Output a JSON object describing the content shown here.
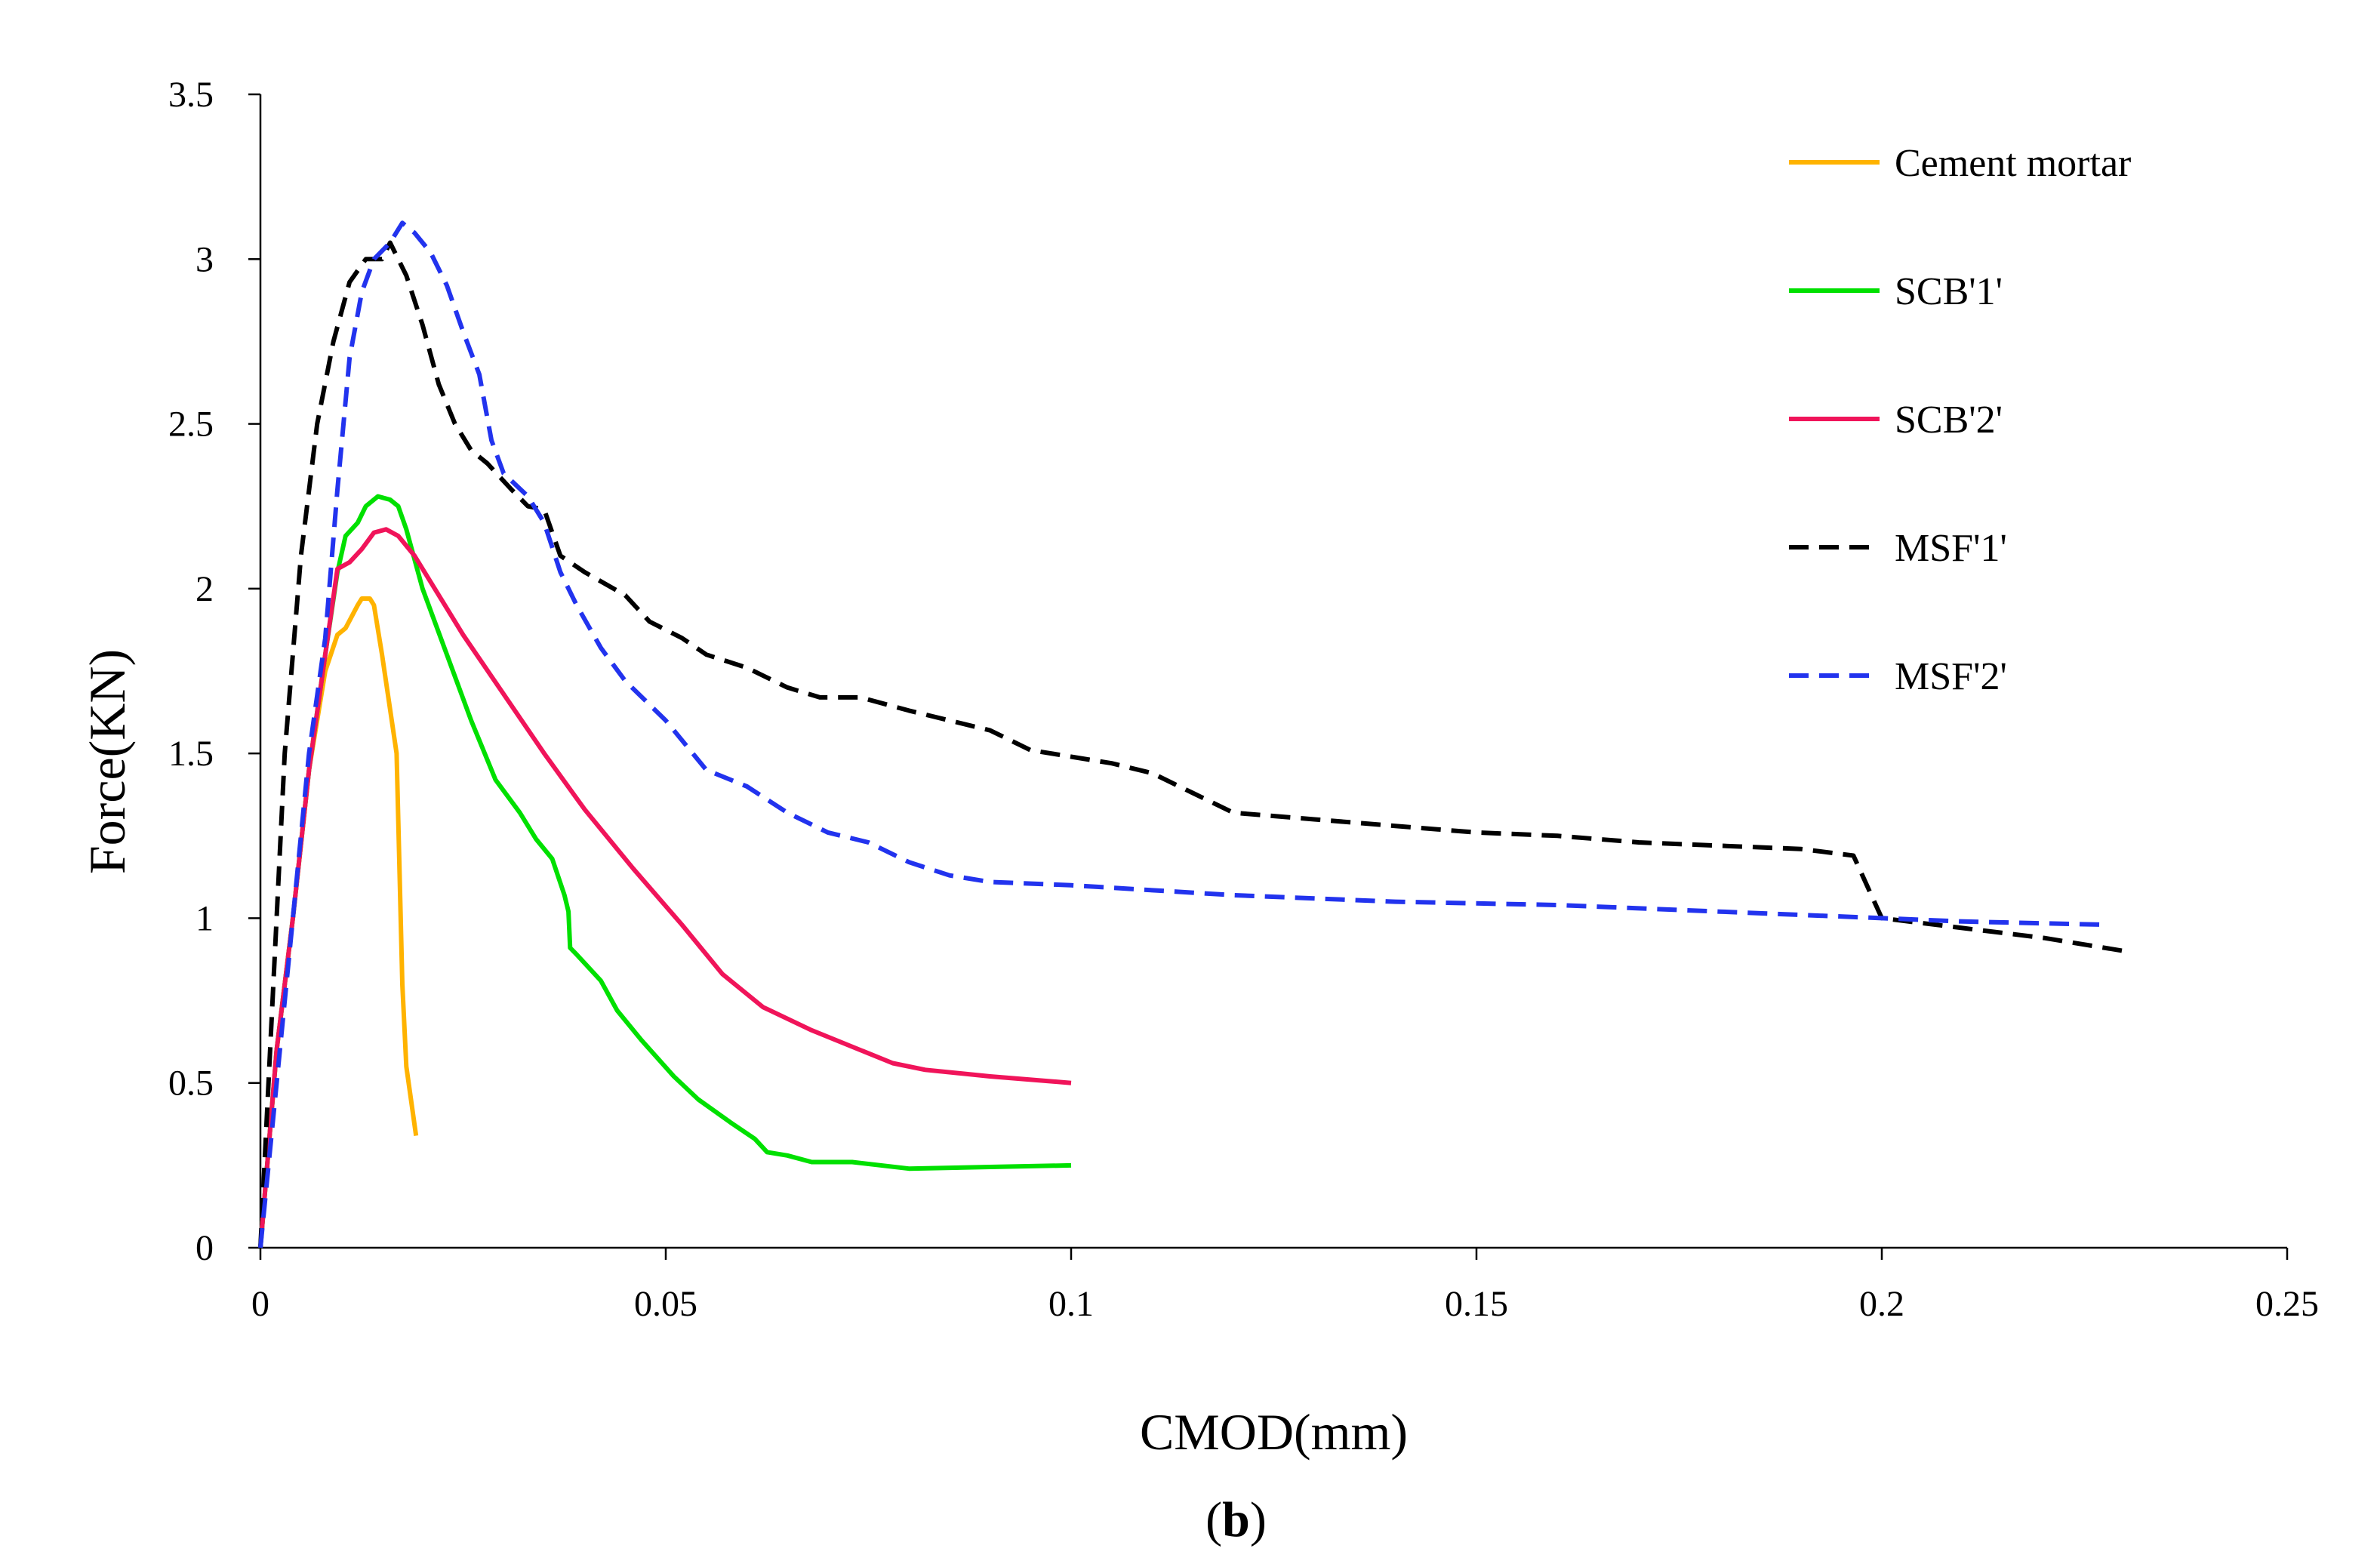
{
  "chart_data": {
    "type": "line",
    "title": "",
    "xlabel": "CMOD(mm)",
    "ylabel": "Force(KN)",
    "caption": {
      "open": "(",
      "bold": "b",
      "close": ")"
    },
    "xlim": [
      0,
      0.25
    ],
    "ylim": [
      0,
      3.5
    ],
    "x_ticks": [
      {
        "value": 0,
        "label": "0"
      },
      {
        "value": 0.05,
        "label": "0.05"
      },
      {
        "value": 0.1,
        "label": "0.1"
      },
      {
        "value": 0.15,
        "label": "0.15"
      },
      {
        "value": 0.2,
        "label": "0.2"
      },
      {
        "value": 0.25,
        "label": "0.25"
      }
    ],
    "y_ticks": [
      {
        "value": 0,
        "label": "0"
      },
      {
        "value": 0.5,
        "label": "0.5"
      },
      {
        "value": 1,
        "label": "1"
      },
      {
        "value": 1.5,
        "label": "1.5"
      },
      {
        "value": 2,
        "label": "2"
      },
      {
        "value": 2.5,
        "label": "2.5"
      },
      {
        "value": 3,
        "label": "3"
      },
      {
        "value": 3.5,
        "label": "3.5"
      }
    ],
    "grid": false,
    "legend_position": "top-right",
    "series": [
      {
        "name": "Cement mortar",
        "color": "#FFB300",
        "dash": "solid",
        "points": [
          [
            0,
            0
          ],
          [
            0.002,
            0.6
          ],
          [
            0.004,
            1.0
          ],
          [
            0.006,
            1.45
          ],
          [
            0.008,
            1.75
          ],
          [
            0.0095,
            1.86
          ],
          [
            0.0105,
            1.88
          ],
          [
            0.012,
            1.95
          ],
          [
            0.0125,
            1.97
          ],
          [
            0.0135,
            1.97
          ],
          [
            0.014,
            1.95
          ],
          [
            0.015,
            1.8
          ],
          [
            0.0168,
            1.5
          ],
          [
            0.017,
            1.3
          ],
          [
            0.0175,
            0.8
          ],
          [
            0.018,
            0.55
          ],
          [
            0.0192,
            0.34
          ]
        ]
      },
      {
        "name": "SCB'1'",
        "color": "#00E000",
        "dash": "solid",
        "points": [
          [
            0,
            0
          ],
          [
            0.002,
            0.6
          ],
          [
            0.004,
            1.0
          ],
          [
            0.006,
            1.45
          ],
          [
            0.008,
            1.8
          ],
          [
            0.0095,
            2.05
          ],
          [
            0.0105,
            2.16
          ],
          [
            0.012,
            2.2
          ],
          [
            0.013,
            2.25
          ],
          [
            0.0145,
            2.28
          ],
          [
            0.016,
            2.27
          ],
          [
            0.017,
            2.25
          ],
          [
            0.018,
            2.18
          ],
          [
            0.02,
            2.0
          ],
          [
            0.023,
            1.8
          ],
          [
            0.026,
            1.6
          ],
          [
            0.029,
            1.42
          ],
          [
            0.032,
            1.32
          ],
          [
            0.034,
            1.24
          ],
          [
            0.036,
            1.18
          ],
          [
            0.0375,
            1.07
          ],
          [
            0.038,
            1.02
          ],
          [
            0.0382,
            0.91
          ],
          [
            0.039,
            0.89
          ],
          [
            0.042,
            0.81
          ],
          [
            0.044,
            0.72
          ],
          [
            0.047,
            0.63
          ],
          [
            0.051,
            0.52
          ],
          [
            0.054,
            0.45
          ],
          [
            0.058,
            0.38
          ],
          [
            0.061,
            0.33
          ],
          [
            0.0625,
            0.29
          ],
          [
            0.065,
            0.28
          ],
          [
            0.068,
            0.26
          ],
          [
            0.073,
            0.26
          ],
          [
            0.08,
            0.24
          ],
          [
            0.09,
            0.245
          ],
          [
            0.1,
            0.25
          ]
        ]
      },
      {
        "name": "SCB'2'",
        "color": "#F0145A",
        "dash": "solid",
        "points": [
          [
            0,
            0
          ],
          [
            0.002,
            0.6
          ],
          [
            0.004,
            1.0
          ],
          [
            0.006,
            1.45
          ],
          [
            0.008,
            1.8
          ],
          [
            0.0095,
            2.06
          ],
          [
            0.011,
            2.08
          ],
          [
            0.0125,
            2.12
          ],
          [
            0.014,
            2.17
          ],
          [
            0.0155,
            2.18
          ],
          [
            0.017,
            2.16
          ],
          [
            0.019,
            2.1
          ],
          [
            0.022,
            1.98
          ],
          [
            0.025,
            1.86
          ],
          [
            0.03,
            1.68
          ],
          [
            0.035,
            1.5
          ],
          [
            0.04,
            1.33
          ],
          [
            0.046,
            1.15
          ],
          [
            0.052,
            0.98
          ],
          [
            0.057,
            0.83
          ],
          [
            0.062,
            0.73
          ],
          [
            0.068,
            0.66
          ],
          [
            0.074,
            0.6
          ],
          [
            0.078,
            0.56
          ],
          [
            0.082,
            0.54
          ],
          [
            0.09,
            0.52
          ],
          [
            0.1,
            0.5
          ]
        ]
      },
      {
        "name": "MSF'1'",
        "color": "#000000",
        "dash": "dashed",
        "points": [
          [
            0,
            0
          ],
          [
            0.001,
            0.5
          ],
          [
            0.003,
            1.5
          ],
          [
            0.005,
            2.1
          ],
          [
            0.007,
            2.5
          ],
          [
            0.009,
            2.75
          ],
          [
            0.011,
            2.93
          ],
          [
            0.013,
            3.0
          ],
          [
            0.015,
            3.0
          ],
          [
            0.016,
            3.05
          ],
          [
            0.018,
            2.95
          ],
          [
            0.02,
            2.8
          ],
          [
            0.022,
            2.62
          ],
          [
            0.024,
            2.5
          ],
          [
            0.026,
            2.42
          ],
          [
            0.028,
            2.38
          ],
          [
            0.031,
            2.3
          ],
          [
            0.033,
            2.25
          ],
          [
            0.035,
            2.24
          ],
          [
            0.037,
            2.1
          ],
          [
            0.04,
            2.05
          ],
          [
            0.045,
            1.98
          ],
          [
            0.048,
            1.9
          ],
          [
            0.052,
            1.85
          ],
          [
            0.055,
            1.8
          ],
          [
            0.06,
            1.76
          ],
          [
            0.065,
            1.7
          ],
          [
            0.069,
            1.67
          ],
          [
            0.074,
            1.67
          ],
          [
            0.08,
            1.63
          ],
          [
            0.085,
            1.6
          ],
          [
            0.09,
            1.57
          ],
          [
            0.095,
            1.51
          ],
          [
            0.1,
            1.49
          ],
          [
            0.105,
            1.47
          ],
          [
            0.11,
            1.44
          ],
          [
            0.115,
            1.38
          ],
          [
            0.12,
            1.32
          ],
          [
            0.13,
            1.3
          ],
          [
            0.14,
            1.28
          ],
          [
            0.15,
            1.26
          ],
          [
            0.16,
            1.25
          ],
          [
            0.17,
            1.23
          ],
          [
            0.18,
            1.22
          ],
          [
            0.19,
            1.21
          ],
          [
            0.1965,
            1.19
          ],
          [
            0.2,
            1.0
          ],
          [
            0.21,
            0.97
          ],
          [
            0.22,
            0.94
          ],
          [
            0.23,
            0.9
          ]
        ]
      },
      {
        "name": "MSF'2'",
        "color": "#2233EE",
        "dash": "dashed",
        "points": [
          [
            0,
            0
          ],
          [
            0.002,
            0.5
          ],
          [
            0.004,
            1.0
          ],
          [
            0.006,
            1.5
          ],
          [
            0.008,
            1.85
          ],
          [
            0.0095,
            2.3
          ],
          [
            0.011,
            2.7
          ],
          [
            0.0125,
            2.9
          ],
          [
            0.014,
            3.0
          ],
          [
            0.016,
            3.05
          ],
          [
            0.0175,
            3.11
          ],
          [
            0.019,
            3.08
          ],
          [
            0.021,
            3.02
          ],
          [
            0.023,
            2.92
          ],
          [
            0.025,
            2.78
          ],
          [
            0.027,
            2.65
          ],
          [
            0.0285,
            2.45
          ],
          [
            0.03,
            2.35
          ],
          [
            0.033,
            2.28
          ],
          [
            0.035,
            2.2
          ],
          [
            0.037,
            2.05
          ],
          [
            0.039,
            1.95
          ],
          [
            0.042,
            1.82
          ],
          [
            0.045,
            1.72
          ],
          [
            0.05,
            1.6
          ],
          [
            0.055,
            1.45
          ],
          [
            0.06,
            1.4
          ],
          [
            0.065,
            1.32
          ],
          [
            0.07,
            1.26
          ],
          [
            0.075,
            1.23
          ],
          [
            0.08,
            1.17
          ],
          [
            0.085,
            1.13
          ],
          [
            0.09,
            1.11
          ],
          [
            0.1,
            1.1
          ],
          [
            0.12,
            1.07
          ],
          [
            0.14,
            1.05
          ],
          [
            0.16,
            1.04
          ],
          [
            0.18,
            1.02
          ],
          [
            0.2,
            1.0
          ],
          [
            0.21,
            0.99
          ],
          [
            0.228,
            0.98
          ]
        ]
      }
    ]
  }
}
